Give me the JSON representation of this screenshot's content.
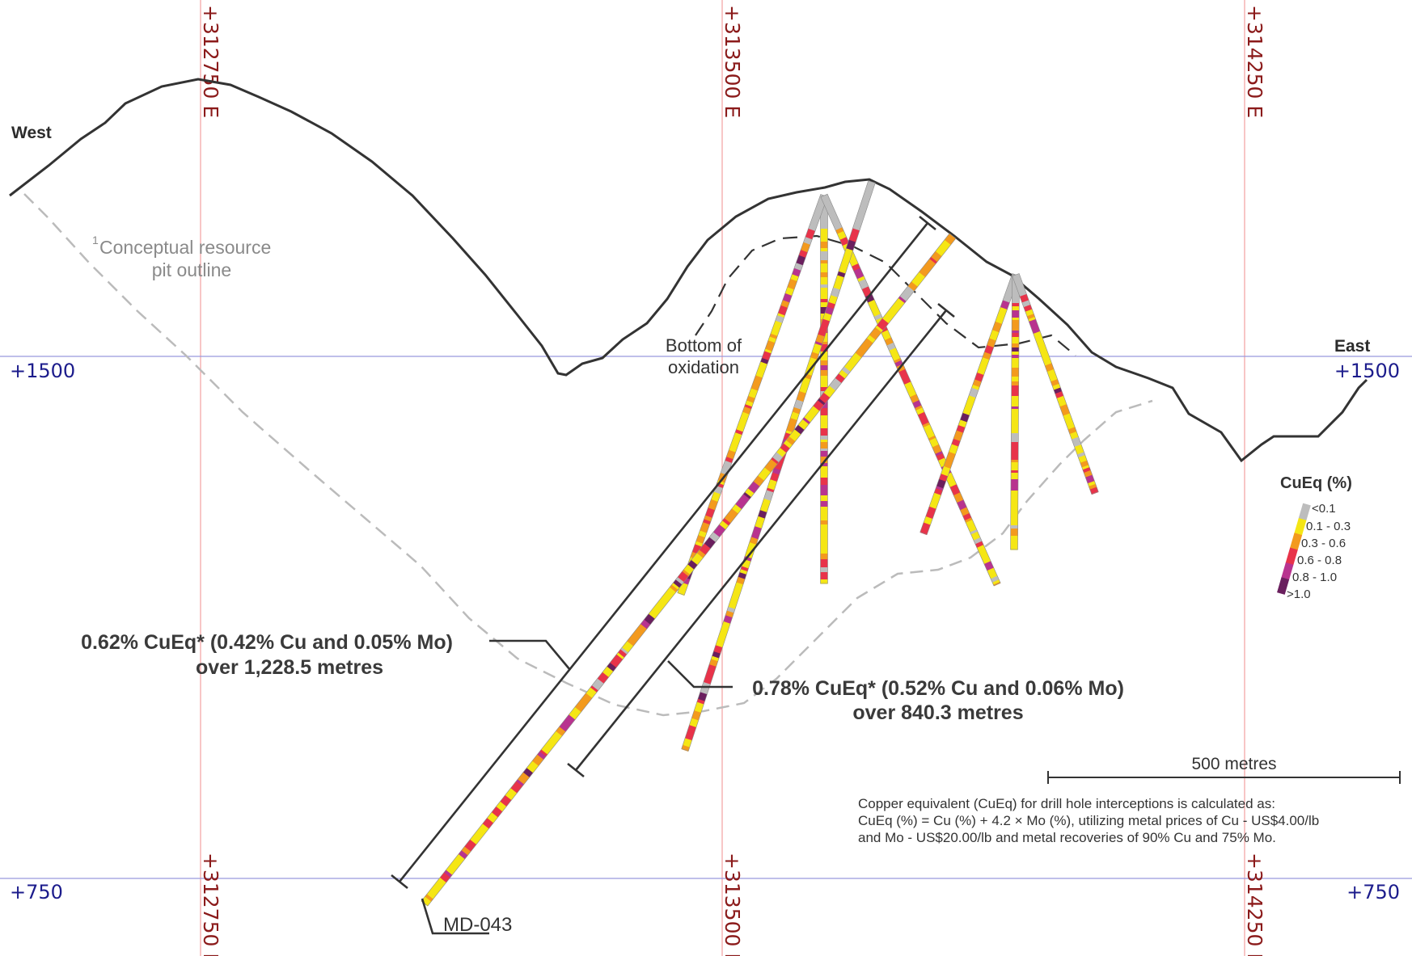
{
  "directions": {
    "west": "West",
    "east": "East"
  },
  "easting_labels": [
    "+312750 E",
    "+313500 E",
    "+314250 E"
  ],
  "elevation_labels": {
    "upper": "+1500",
    "lower": "+750"
  },
  "pit_note": {
    "superscript": "1",
    "line1": "Conceptual resource",
    "line2": "pit outline"
  },
  "oxidation_note": {
    "line1": "Bottom of",
    "line2": "oxidation"
  },
  "intercept_1": {
    "line1": "0.62% CuEq* (0.42% Cu and 0.05% Mo)",
    "line2": "over 1,228.5 metres"
  },
  "intercept_2": {
    "line1": "0.78% CuEq* (0.52% Cu and 0.06% Mo)",
    "line2": "over 840.3 metres"
  },
  "hole_label": "MD-043",
  "scale_bar": {
    "label": "500 metres"
  },
  "legend": {
    "title": "CuEq (%)",
    "items": [
      {
        "label": "<0.1",
        "color": "#bdbdbd"
      },
      {
        "label": "0.1 - 0.3",
        "color": "#f5e614"
      },
      {
        "label": "0.3 - 0.6",
        "color": "#f39a1e"
      },
      {
        "label": "0.6 - 0.8",
        "color": "#e8334a"
      },
      {
        "label": "0.8 - 1.0",
        "color": "#b8338f"
      },
      {
        "label": ">1.0",
        "color": "#6a1f5e"
      }
    ]
  },
  "footnote": {
    "line1": "Copper equivalent (CuEq) for drill hole interceptions is calculated as:",
    "line2": "CuEq (%) = Cu (%) + 4.2 × Mo (%), utilizing metal prices of Cu - US$4.00/lb",
    "line3": "and Mo - US$20.00/lb and metal recoveries of 90% Cu and 75% Mo."
  },
  "colors": {
    "topography": "#333333",
    "pit_outline": "#bbbbbb",
    "oxidation": "#333333",
    "easting_grid": "#f2a0a0",
    "elevation_grid": "#9999dd"
  }
}
